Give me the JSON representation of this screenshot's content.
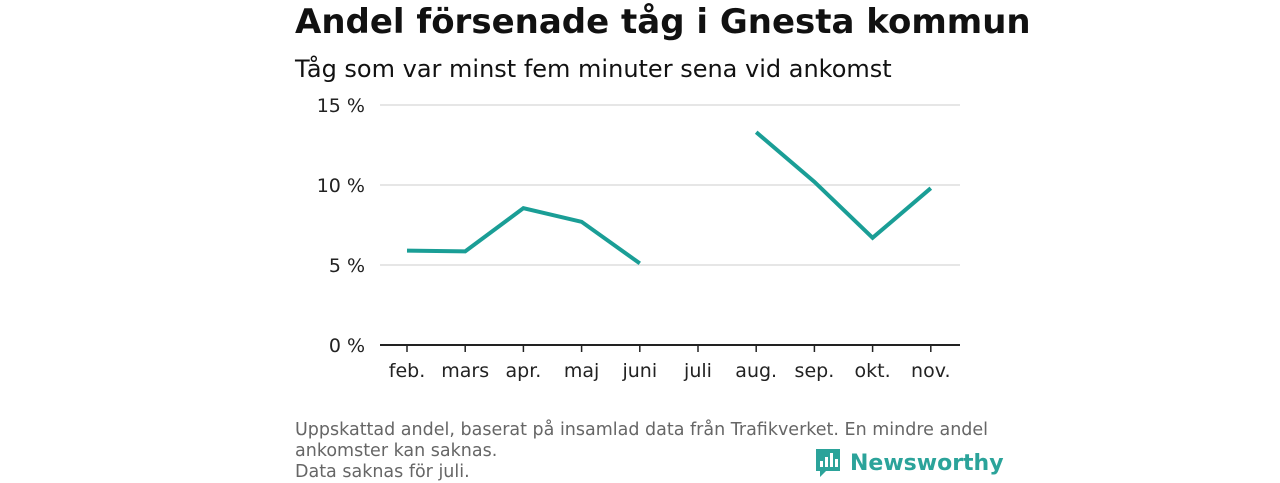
{
  "title": "Andel försenade tåg i Gnesta kommun",
  "subtitle": "Tåg som var minst fem minuter sena vid ankomst",
  "footer": {
    "line1": "Uppskattad andel, baserat på insamlad data från Trafikverket. En mindre andel",
    "line2": "ankomster kan saknas.",
    "line3": "Data saknas för juli."
  },
  "logo": {
    "text": "Newsworthy",
    "icon": "newsworthy-chart-icon"
  },
  "colors": {
    "line": "#1a9e96",
    "grid": "#dddddd",
    "axis": "#222222",
    "logo": "#2ba39a"
  },
  "chart_data": {
    "type": "line",
    "categories": [
      "feb.",
      "mars",
      "apr.",
      "maj",
      "juni",
      "juli",
      "aug.",
      "sep.",
      "okt.",
      "nov."
    ],
    "series": [
      {
        "values": [
          5.9,
          5.85,
          8.55,
          7.7,
          5.1,
          null,
          13.3,
          10.2,
          6.7,
          9.8
        ]
      }
    ],
    "yticks": [
      "0 %",
      "5 %",
      "10 %",
      "15 %"
    ],
    "ytick_values": [
      0,
      5,
      10,
      15
    ],
    "ylim": [
      0,
      15
    ],
    "grid": true,
    "legend": "none"
  }
}
